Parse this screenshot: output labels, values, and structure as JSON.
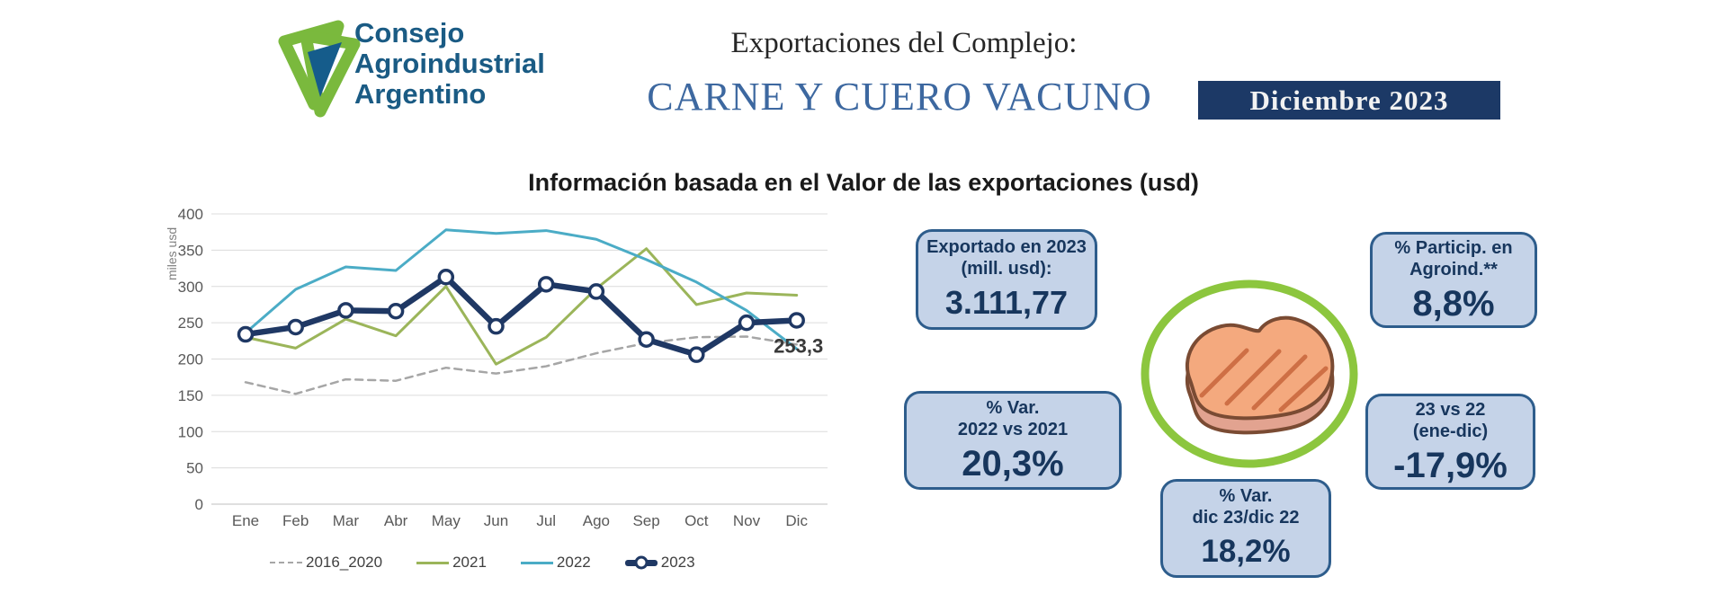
{
  "header": {
    "logo": {
      "line1": "Consejo",
      "line2": "Agroindustrial",
      "line3": "Argentino"
    },
    "title_prefix": "Exportaciones del Complejo:",
    "title_main": "CARNE Y CUERO VACUNO",
    "period_badge": "Diciembre 2023"
  },
  "chart_data": {
    "type": "line",
    "title": "Información basada en el Valor de las exportaciones (usd)",
    "xlabel": "",
    "ylabel": "miles usd",
    "ylim": [
      0,
      400
    ],
    "ytick_step": 50,
    "grid": true,
    "legend_position": "bottom",
    "categories": [
      "Ene",
      "Feb",
      "Mar",
      "Abr",
      "May",
      "Jun",
      "Jul",
      "Ago",
      "Sep",
      "Oct",
      "Nov",
      "Dic"
    ],
    "series": [
      {
        "name": "2016_2020",
        "color": "#A6A6A6",
        "style": "dashed",
        "values": [
          168,
          152,
          172,
          170,
          188,
          180,
          190,
          208,
          222,
          230,
          231,
          220
        ]
      },
      {
        "name": "2021",
        "color": "#9BB55A",
        "style": "solid",
        "values": [
          230,
          215,
          255,
          232,
          300,
          193,
          230,
          297,
          352,
          275,
          291,
          288
        ]
      },
      {
        "name": "2022",
        "color": "#4BACC6",
        "style": "solid",
        "values": [
          236,
          296,
          327,
          322,
          378,
          373,
          377,
          365,
          337,
          306,
          267,
          214
        ]
      },
      {
        "name": "2023",
        "color": "#1F3864",
        "style": "solid-markers",
        "values": [
          234,
          244,
          267,
          266,
          313,
          245,
          303,
          293,
          227,
          206,
          250,
          253.3
        ]
      }
    ],
    "annotations": [
      {
        "text": "253,3",
        "series": "2023",
        "index": 11
      }
    ]
  },
  "stat_boxes": [
    {
      "id": "exportado-2023",
      "lines": [
        "Exportado en 2023",
        "(mill. usd):"
      ],
      "value": "3.111,77"
    },
    {
      "id": "particip-agroind",
      "lines": [
        "% Particip. en",
        "Agroind.**"
      ],
      "value": "8,8%"
    },
    {
      "id": "var-2022-vs-2021",
      "lines": [
        "% Var.",
        "2022 vs 2021"
      ],
      "value": "20,3%"
    },
    {
      "id": "var-23-vs-22-ene-dic",
      "lines": [
        "23 vs 22",
        "(ene-dic)"
      ],
      "value": "-17,9%"
    },
    {
      "id": "var-dic23-dic22",
      "lines": [
        "% Var.",
        "dic 23/dic 22"
      ],
      "value": "18,2%"
    }
  ],
  "icons": {
    "center_icon": "steak-icon"
  },
  "colors": {
    "logo_green": "#7AB93D",
    "logo_blue": "#155C8B",
    "logo_text": "#1A5B84",
    "title_blue": "#3D68A0",
    "badge_bg": "#1C3966",
    "box_fill": "#C5D3E8",
    "box_border": "#2E5D8C",
    "box_text": "#17365D",
    "circle_green": "#8CC63E",
    "grid_gray": "#DCDCDC"
  }
}
